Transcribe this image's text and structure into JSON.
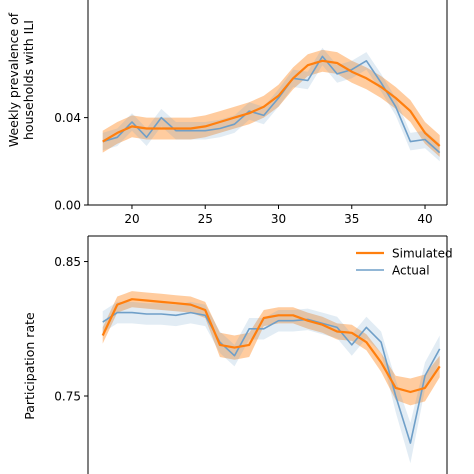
{
  "chart_data": [
    {
      "type": "line",
      "ylabel": "Weekly prevalence of households with ILI",
      "ylabel_lines": [
        "Weekly prevalence of",
        "households with ILI"
      ],
      "xlim": [
        17,
        41.5
      ],
      "ylim": [
        0.0,
        0.0975
      ],
      "xticks": [
        20,
        25,
        30,
        35,
        40
      ],
      "yticks": [
        0.0,
        0.04
      ],
      "ytick_labels": [
        "0.00",
        "0.04"
      ],
      "grid": false,
      "series": [
        {
          "name": "Simulated",
          "color": "#ff7f0e",
          "x": [
            18,
            19,
            20,
            21,
            22,
            23,
            24,
            25,
            26,
            27,
            28,
            29,
            30,
            31,
            32,
            33,
            34,
            35,
            36,
            37,
            38,
            39,
            40,
            41
          ],
          "values": [
            0.029,
            0.033,
            0.036,
            0.035,
            0.035,
            0.035,
            0.035,
            0.036,
            0.038,
            0.04,
            0.042,
            0.045,
            0.05,
            0.058,
            0.064,
            0.066,
            0.065,
            0.061,
            0.058,
            0.054,
            0.049,
            0.043,
            0.033,
            0.027
          ],
          "lower": [
            0.024,
            0.028,
            0.031,
            0.03,
            0.03,
            0.03,
            0.03,
            0.031,
            0.033,
            0.035,
            0.037,
            0.04,
            0.045,
            0.053,
            0.059,
            0.061,
            0.06,
            0.056,
            0.053,
            0.049,
            0.044,
            0.038,
            0.028,
            0.022
          ],
          "upper": [
            0.034,
            0.038,
            0.041,
            0.04,
            0.04,
            0.04,
            0.04,
            0.041,
            0.043,
            0.045,
            0.047,
            0.05,
            0.055,
            0.063,
            0.069,
            0.071,
            0.07,
            0.066,
            0.063,
            0.059,
            0.054,
            0.048,
            0.038,
            0.032
          ]
        },
        {
          "name": "Actual",
          "color": "#6f9fc8",
          "x": [
            18,
            19,
            20,
            21,
            22,
            23,
            24,
            25,
            26,
            27,
            28,
            29,
            30,
            31,
            32,
            33,
            34,
            35,
            36,
            37,
            38,
            39,
            40,
            41
          ],
          "values": [
            0.029,
            0.031,
            0.038,
            0.031,
            0.04,
            0.034,
            0.034,
            0.034,
            0.035,
            0.037,
            0.043,
            0.041,
            0.049,
            0.058,
            0.057,
            0.068,
            0.06,
            0.062,
            0.066,
            0.056,
            0.045,
            0.029,
            0.03,
            0.024
          ],
          "lower": [
            0.025,
            0.027,
            0.034,
            0.027,
            0.036,
            0.03,
            0.03,
            0.03,
            0.031,
            0.033,
            0.039,
            0.037,
            0.045,
            0.054,
            0.053,
            0.064,
            0.056,
            0.058,
            0.062,
            0.052,
            0.041,
            0.025,
            0.026,
            0.02
          ],
          "upper": [
            0.033,
            0.035,
            0.042,
            0.035,
            0.044,
            0.038,
            0.038,
            0.038,
            0.039,
            0.041,
            0.047,
            0.045,
            0.053,
            0.062,
            0.061,
            0.072,
            0.064,
            0.066,
            0.07,
            0.06,
            0.049,
            0.033,
            0.034,
            0.028
          ]
        }
      ]
    },
    {
      "type": "line",
      "ylabel": "Participation rate",
      "ylabel_lines": [
        "Participation rate"
      ],
      "xlim": [
        17,
        41.5
      ],
      "ylim": [
        0.692,
        0.869
      ],
      "yticks": [
        0.75,
        0.85
      ],
      "ytick_labels": [
        "0.75",
        "0.85"
      ],
      "grid": false,
      "legend": {
        "position": "top-right",
        "entries": [
          "Simulated",
          "Actual"
        ]
      },
      "series": [
        {
          "name": "Simulated",
          "color": "#ff7f0e",
          "x": [
            18,
            19,
            20,
            21,
            22,
            23,
            24,
            25,
            26,
            27,
            28,
            29,
            30,
            31,
            32,
            33,
            34,
            35,
            36,
            37,
            38,
            39,
            40,
            41
          ],
          "values": [
            0.795,
            0.818,
            0.822,
            0.821,
            0.82,
            0.819,
            0.818,
            0.814,
            0.788,
            0.786,
            0.788,
            0.808,
            0.81,
            0.81,
            0.806,
            0.803,
            0.798,
            0.797,
            0.79,
            0.775,
            0.756,
            0.753,
            0.756,
            0.772
          ],
          "lower": [
            0.789,
            0.812,
            0.816,
            0.815,
            0.814,
            0.813,
            0.812,
            0.808,
            0.779,
            0.777,
            0.779,
            0.802,
            0.804,
            0.804,
            0.8,
            0.797,
            0.792,
            0.791,
            0.784,
            0.768,
            0.747,
            0.743,
            0.746,
            0.764
          ],
          "upper": [
            0.801,
            0.824,
            0.828,
            0.827,
            0.826,
            0.825,
            0.824,
            0.82,
            0.797,
            0.795,
            0.797,
            0.814,
            0.816,
            0.816,
            0.812,
            0.809,
            0.804,
            0.803,
            0.796,
            0.782,
            0.765,
            0.763,
            0.766,
            0.78
          ]
        },
        {
          "name": "Actual",
          "color": "#6f9fc8",
          "x": [
            18,
            19,
            20,
            21,
            22,
            23,
            24,
            25,
            26,
            27,
            28,
            29,
            30,
            31,
            32,
            33,
            34,
            35,
            36,
            37,
            38,
            39,
            40,
            41
          ],
          "values": [
            0.805,
            0.812,
            0.812,
            0.811,
            0.811,
            0.81,
            0.812,
            0.81,
            0.79,
            0.78,
            0.8,
            0.8,
            0.806,
            0.806,
            0.807,
            0.804,
            0.801,
            0.788,
            0.801,
            0.79,
            0.75,
            0.715,
            0.765,
            0.785
          ],
          "lower": [
            0.797,
            0.804,
            0.804,
            0.803,
            0.803,
            0.802,
            0.804,
            0.802,
            0.782,
            0.772,
            0.792,
            0.792,
            0.798,
            0.798,
            0.799,
            0.796,
            0.793,
            0.78,
            0.793,
            0.782,
            0.738,
            0.7,
            0.755,
            0.775
          ],
          "upper": [
            0.813,
            0.82,
            0.82,
            0.819,
            0.819,
            0.818,
            0.82,
            0.818,
            0.798,
            0.788,
            0.808,
            0.808,
            0.814,
            0.814,
            0.815,
            0.812,
            0.809,
            0.796,
            0.809,
            0.798,
            0.762,
            0.73,
            0.775,
            0.795
          ]
        }
      ]
    }
  ]
}
